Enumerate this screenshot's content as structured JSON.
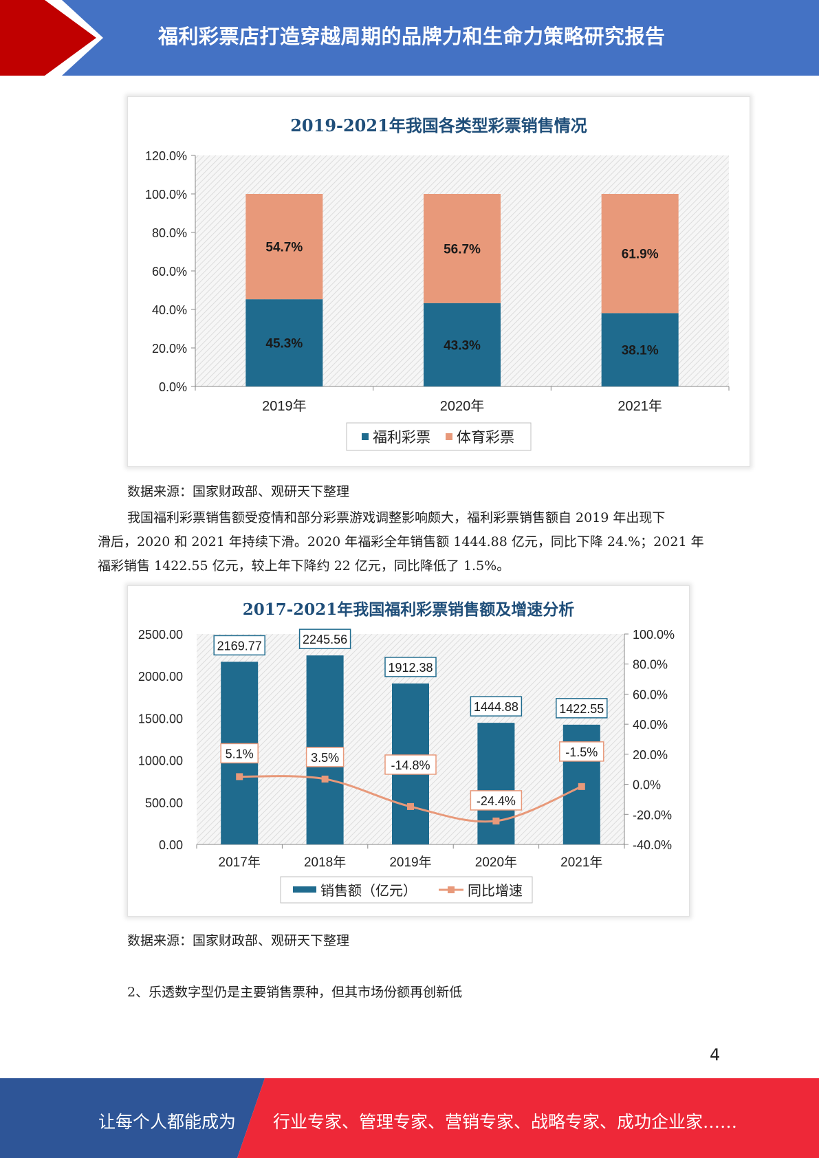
{
  "header": {
    "title": "福利彩票店打造穿越周期的品牌力和生命力策略研究报告",
    "colors": {
      "band": "#4472c4",
      "accent": "#c00000"
    }
  },
  "chart1": {
    "source": "数据来源：国家财政部、观研天下整理"
  },
  "paragraph": {
    "line1": "我国福利彩票销售额受疫情和部分彩票游戏调整影响颇大，福利彩票销售额自 2019 年出现下",
    "line2": "滑后，2020 和 2021 年持续下滑。2020 年福彩全年销售额 1444.88 亿元，同比下降 24.%；2021 年",
    "line3": "福彩销售 1422.55 亿元，较上年下降约 22 亿元，同比降低了 1.5%。"
  },
  "chart2": {
    "source": "数据来源：国家财政部、观研天下整理"
  },
  "section": {
    "heading": "2、乐透数字型仍是主要销售票种，但其市场份额再创新低"
  },
  "page": {
    "number": "4"
  },
  "footer": {
    "left": "让每个人都能成为",
    "right": "行业专家、管理专家、营销专家、战略专家、成功企业家……",
    "colors": {
      "left": "#2e5597",
      "right": "#ee2838"
    }
  },
  "chart_data": [
    {
      "type": "bar",
      "stacked": true,
      "title": "2019-2021年我国各类型彩票销售情况",
      "categories": [
        "2019年",
        "2020年",
        "2021年"
      ],
      "series": [
        {
          "name": "福利彩票",
          "values": [
            45.3,
            43.3,
            38.1
          ],
          "labels": [
            "45.3%",
            "43.3%",
            "38.1%"
          ],
          "color": "#1f6b8e"
        },
        {
          "name": "体育彩票",
          "values": [
            54.7,
            56.7,
            61.9
          ],
          "labels": [
            "54.7%",
            "56.7%",
            "61.9%"
          ],
          "color": "#e8997a"
        }
      ],
      "yticks": [
        "0.0%",
        "20.0%",
        "40.0%",
        "60.0%",
        "80.0%",
        "100.0%",
        "120.0%"
      ],
      "ylim": [
        0,
        120
      ],
      "legend": "bottom",
      "grid": false
    },
    {
      "type": "bar+line",
      "title": "2017-2021年我国福利彩票销售额及增速分析",
      "categories": [
        "2017年",
        "2018年",
        "2019年",
        "2020年",
        "2021年"
      ],
      "series": [
        {
          "name": "销售额（亿元）",
          "type": "bar",
          "axis": "left",
          "values": [
            2169.77,
            2245.56,
            1912.38,
            1444.88,
            1422.55
          ],
          "labels": [
            "2169.77",
            "2245.56",
            "1912.38",
            "1444.88",
            "1422.55"
          ],
          "color": "#1f6b8e"
        },
        {
          "name": "同比增速",
          "type": "line",
          "axis": "right",
          "values": [
            5.1,
            3.5,
            -14.8,
            -24.4,
            -1.5
          ],
          "labels": [
            "5.1%",
            "3.5%",
            "-14.8%",
            "-24.4%",
            "-1.5%"
          ],
          "color": "#e8997a"
        }
      ],
      "yticks_left": [
        "0.00",
        "500.00",
        "1000.00",
        "1500.00",
        "2000.00",
        "2500.00"
      ],
      "ylim_left": [
        0,
        2500
      ],
      "yticks_right": [
        "-40.0%",
        "-20.0%",
        "0.0%",
        "20.0%",
        "40.0%",
        "60.0%",
        "80.0%",
        "100.0%"
      ],
      "ylim_right": [
        -40,
        100
      ],
      "legend": "bottom",
      "grid": false
    }
  ]
}
